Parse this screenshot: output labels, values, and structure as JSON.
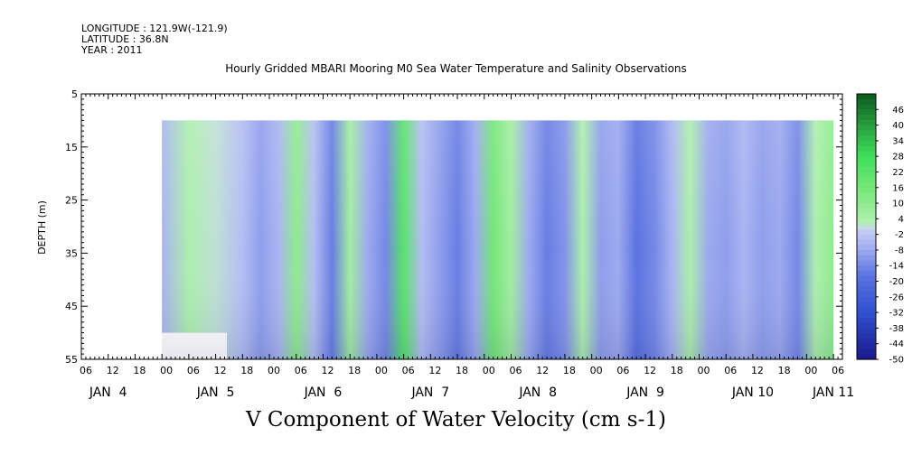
{
  "header": {
    "longitude": "LONGITUDE : 121.9W(-121.9)",
    "latitude": "LATITUDE : 36.8N",
    "year": "YEAR : 2011"
  },
  "colors": {
    "negative_dark": "#1a1a8c",
    "negative_mid": "#5a72e0",
    "negative_light": "#a9b4f2",
    "positive_light": "#b5f0b5",
    "positive_mid": "#3ee05a",
    "positive_dark": "#0c5a1e"
  },
  "chart_data": {
    "type": "heatmap",
    "title": "Hourly Gridded MBARI Mooring M0 Sea Water Temperature and Salinity Observations",
    "subtitle": "V Component of Water Velocity (cm s-1)",
    "ylabel": "DEPTH (m)",
    "xlabel": "",
    "ylim": [
      55,
      5
    ],
    "xlim_hours": [
      0,
      170
    ],
    "y_ticks": [
      "5",
      "15",
      "25",
      "35",
      "45",
      "55"
    ],
    "x_hour_ticks": [
      "06",
      "12",
      "18",
      "00",
      "06",
      "12",
      "18",
      "00",
      "06",
      "12",
      "18",
      "00",
      "06",
      "12",
      "18",
      "00",
      "06",
      "12",
      "18",
      "00",
      "06",
      "12",
      "18",
      "00",
      "06",
      "12",
      "18",
      "00",
      "06"
    ],
    "x_day_labels": [
      "JAN  4",
      "JAN  5",
      "JAN  6",
      "JAN  7",
      "JAN  8",
      "JAN  9",
      "JAN 10",
      "JAN 11"
    ],
    "colorbar": {
      "labels": [
        "46",
        "40",
        "34",
        "28",
        "22",
        "16",
        "10",
        "4",
        "-2",
        "-8",
        "-14",
        "-20",
        "-26",
        "-32",
        "-38",
        "-44",
        "-50"
      ],
      "range": [
        -50,
        52
      ]
    },
    "data_extent": {
      "x_hours": [
        18,
        168
      ],
      "depth": [
        10,
        55
      ],
      "early_period_depth": [
        10,
        50
      ]
    },
    "v_velocity_profiles": [
      {
        "hour": 18,
        "v": -6
      },
      {
        "hour": 24,
        "v": 4
      },
      {
        "hour": 30,
        "v": 1
      },
      {
        "hour": 36,
        "v": -4
      },
      {
        "hour": 40,
        "v": -10
      },
      {
        "hour": 44,
        "v": -6
      },
      {
        "hour": 48,
        "v": 10
      },
      {
        "hour": 52,
        "v": -4
      },
      {
        "hour": 56,
        "v": -16
      },
      {
        "hour": 60,
        "v": 6
      },
      {
        "hour": 64,
        "v": -8
      },
      {
        "hour": 68,
        "v": -14
      },
      {
        "hour": 72,
        "v": 22
      },
      {
        "hour": 76,
        "v": -4
      },
      {
        "hour": 80,
        "v": -10
      },
      {
        "hour": 84,
        "v": -16
      },
      {
        "hour": 88,
        "v": -8
      },
      {
        "hour": 92,
        "v": 16
      },
      {
        "hour": 96,
        "v": 6
      },
      {
        "hour": 100,
        "v": -8
      },
      {
        "hour": 104,
        "v": -16
      },
      {
        "hour": 108,
        "v": -12
      },
      {
        "hour": 112,
        "v": 4
      },
      {
        "hour": 116,
        "v": -10
      },
      {
        "hour": 120,
        "v": -8
      },
      {
        "hour": 124,
        "v": -18
      },
      {
        "hour": 128,
        "v": -14
      },
      {
        "hour": 132,
        "v": -6
      },
      {
        "hour": 136,
        "v": 4
      },
      {
        "hour": 140,
        "v": -8
      },
      {
        "hour": 144,
        "v": -10
      },
      {
        "hour": 148,
        "v": -6
      },
      {
        "hour": 152,
        "v": -10
      },
      {
        "hour": 156,
        "v": -8
      },
      {
        "hour": 160,
        "v": -14
      },
      {
        "hour": 164,
        "v": 4
      },
      {
        "hour": 168,
        "v": 10
      }
    ]
  }
}
